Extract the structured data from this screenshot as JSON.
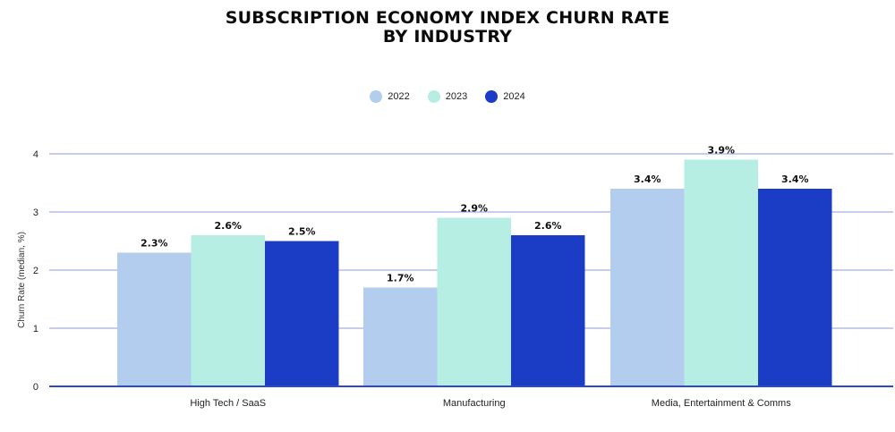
{
  "chart_data": {
    "type": "bar",
    "title_lines": [
      "SUBSCRIPTION ECONOMY INDEX CHURN RATE",
      "BY INDUSTRY"
    ],
    "ylabel": "Churn Rate (median, %)",
    "xlabel": "",
    "ylim": [
      0,
      4
    ],
    "yticks": [
      0,
      1,
      2,
      3,
      4
    ],
    "grid": true,
    "legend_position": "top-center",
    "categories": [
      "High Tech / SaaS",
      "Manufacturing",
      "Media, Entertainment & Comms"
    ],
    "series": [
      {
        "name": "2022",
        "color": "#b3cdee",
        "values": [
          2.3,
          1.7,
          3.4
        ],
        "labels": [
          "2.3%",
          "1.7%",
          "3.4%"
        ]
      },
      {
        "name": "2023",
        "color": "#b6eee4",
        "values": [
          2.6,
          2.9,
          3.9
        ],
        "labels": [
          "2.6%",
          "2.9%",
          "3.9%"
        ]
      },
      {
        "name": "2024",
        "color": "#1b3cc4",
        "values": [
          2.5,
          2.6,
          3.4
        ],
        "labels": [
          "2.5%",
          "2.6%",
          "3.4%"
        ]
      }
    ],
    "gridline_color": "#8c9be0",
    "axis_color": "#2d48c8"
  }
}
